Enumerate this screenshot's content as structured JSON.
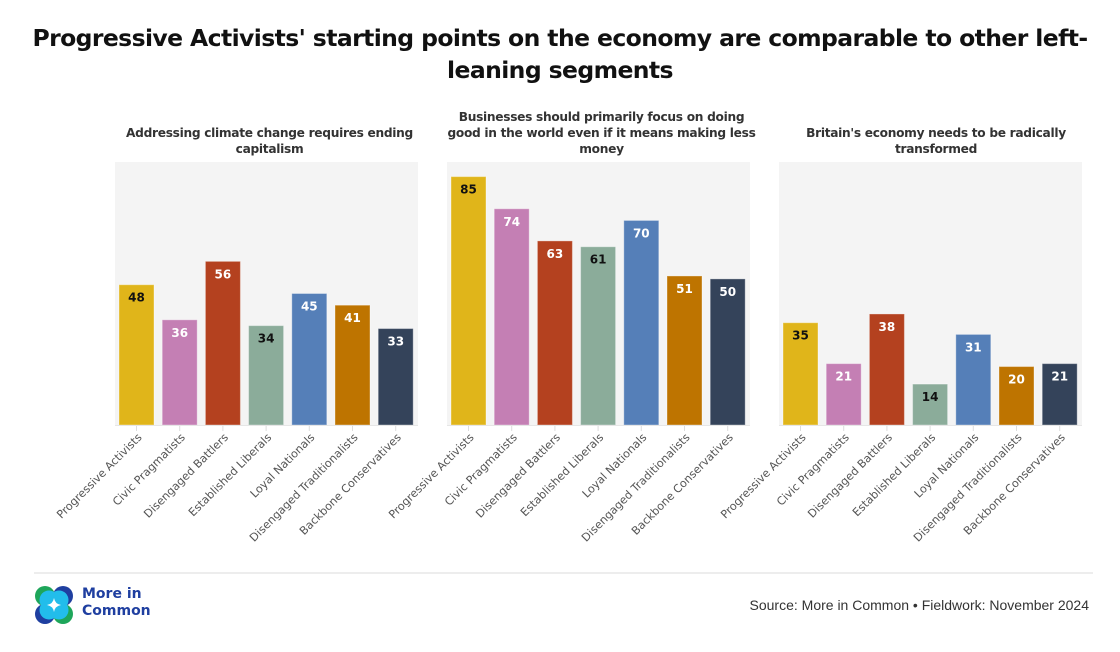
{
  "chart_data": [
    {
      "type": "bar",
      "title": "Addressing climate change requires ending capitalism",
      "categories": [
        "Progressive Activists",
        "Civic Pragmatists",
        "Disengaged Battlers",
        "Established Liberals",
        "Loyal Nationals",
        "Disengaged Traditionalists",
        "Backbone Conservatives"
      ],
      "values": [
        48,
        36,
        56,
        34,
        45,
        41,
        33
      ],
      "ylim": [
        0,
        90
      ],
      "xlabel": "",
      "ylabel": "",
      "grid": false
    },
    {
      "type": "bar",
      "title": "Businesses should primarily focus on doing good in the world even if it means making less money",
      "categories": [
        "Progressive Activists",
        "Civic Pragmatists",
        "Disengaged Battlers",
        "Established Liberals",
        "Loyal Nationals",
        "Disengaged Traditionalists",
        "Backbone Conservatives"
      ],
      "values": [
        85,
        74,
        63,
        61,
        70,
        51,
        50
      ],
      "ylim": [
        0,
        90
      ],
      "xlabel": "",
      "ylabel": "",
      "grid": false
    },
    {
      "type": "bar",
      "title": "Britain's economy needs to be radically transformed",
      "categories": [
        "Progressive Activists",
        "Civic Pragmatists",
        "Disengaged Battlers",
        "Established Liberals",
        "Loyal Nationals",
        "Disengaged Traditionalists",
        "Backbone Conservatives"
      ],
      "values": [
        35,
        21,
        38,
        14,
        31,
        20,
        21
      ],
      "ylim": [
        0,
        90
      ],
      "xlabel": "",
      "ylabel": "",
      "grid": false
    }
  ],
  "page": {
    "title": "Progressive Activists' starting points on the economy are comparable to other left-leaning segments",
    "subtitles": [
      "Addressing climate change requires ending capitalism",
      "Businesses should primarily focus on doing good in the world even if it means making less money",
      "Britain's economy needs to be radically transformed"
    ],
    "source": "Source: More in Common • Fieldwork: November 2024",
    "brand_line1": "More in",
    "brand_line2": "Common"
  },
  "colors": {
    "segments": [
      "#E0B51A",
      "#C47FB4",
      "#B4411F",
      "#8BAC9A",
      "#557FB8",
      "#BE7400",
      "#34435A"
    ],
    "label_text": [
      "#111111",
      "#ffffff",
      "#ffffff",
      "#111111",
      "#ffffff",
      "#ffffff",
      "#ffffff"
    ],
    "panel_bg": "#F4F4F4",
    "brand": "#1F3FA0"
  }
}
